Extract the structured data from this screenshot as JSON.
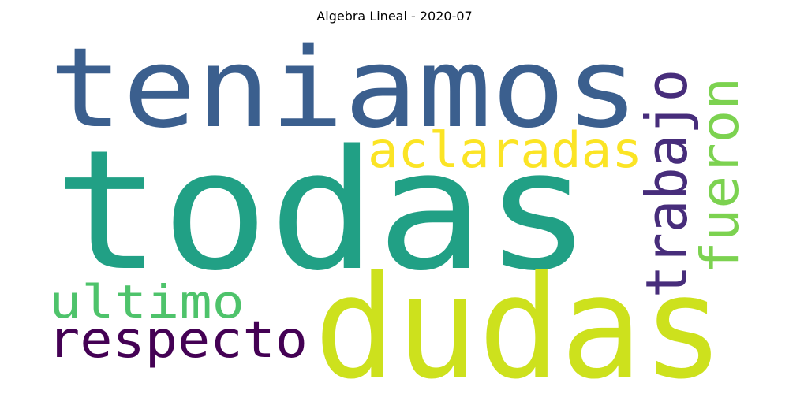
{
  "title": "Algebra Lineal - 2020-07",
  "words": [
    {
      "text": "todas",
      "color": "#21a085",
      "orientation": "horizontal"
    },
    {
      "text": "teniamos",
      "color": "#3b5f8e",
      "orientation": "horizontal"
    },
    {
      "text": "dudas",
      "color": "#cde11d",
      "orientation": "horizontal"
    },
    {
      "text": "aclaradas",
      "color": "#fbe425",
      "orientation": "horizontal"
    },
    {
      "text": "trabajo",
      "color": "#472d7b",
      "orientation": "vertical"
    },
    {
      "text": "fueron",
      "color": "#7cd250",
      "orientation": "vertical"
    },
    {
      "text": "ultimo",
      "color": "#4ec36b",
      "orientation": "horizontal"
    },
    {
      "text": "respecto",
      "color": "#440154",
      "orientation": "horizontal"
    }
  ]
}
